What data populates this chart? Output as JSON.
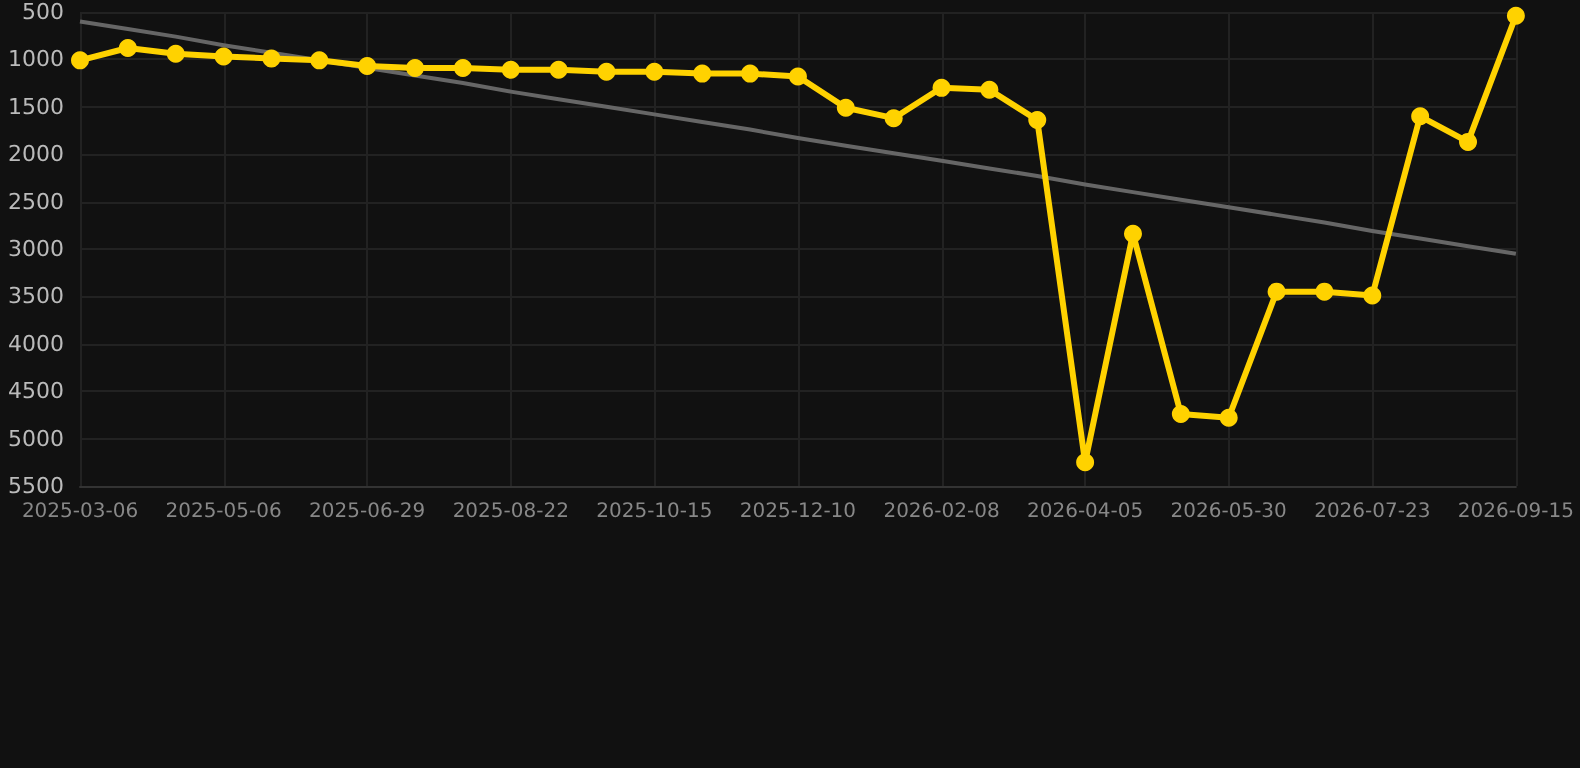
{
  "chart_data": {
    "type": "line",
    "categories": [
      "2025-03-06",
      null,
      null,
      "2025-05-06",
      null,
      null,
      "2025-06-29",
      null,
      null,
      "2025-08-22",
      null,
      null,
      "2025-10-15",
      null,
      null,
      "2025-12-10",
      null,
      null,
      "2026-02-08",
      null,
      null,
      "2026-04-05",
      null,
      null,
      "2026-05-30",
      null,
      null,
      "2026-07-23",
      null,
      null,
      "2026-09-15"
    ],
    "series": [
      {
        "color": "#ffd200",
        "marker": "circle",
        "values": [
          1010,
          880,
          940,
          970,
          990,
          1010,
          1070,
          1090,
          1090,
          1110,
          1110,
          1130,
          1130,
          1150,
          1150,
          1180,
          1510,
          1620,
          1300,
          1320,
          1640,
          5250,
          2840,
          4740,
          4780,
          3450,
          3450,
          3490,
          1600,
          1870,
          540
        ]
      },
      {
        "type": "line",
        "color": "#666666",
        "marker": "none",
        "values": [
          600,
          680,
          760,
          850,
          930,
          1010,
          1090,
          1170,
          1250,
          1340,
          1420,
          1500,
          1580,
          1660,
          1740,
          1830,
          1910,
          1990,
          2070,
          2150,
          2230,
          2320,
          2400,
          2480,
          2560,
          2640,
          2720,
          2810,
          2890,
          2970,
          3050
        ]
      }
    ],
    "ylim": [
      5500,
      500
    ],
    "yticks": [
      500,
      1000,
      1500,
      2000,
      2500,
      3000,
      3500,
      4000,
      4500,
      5000,
      5500
    ],
    "grid": true
  }
}
